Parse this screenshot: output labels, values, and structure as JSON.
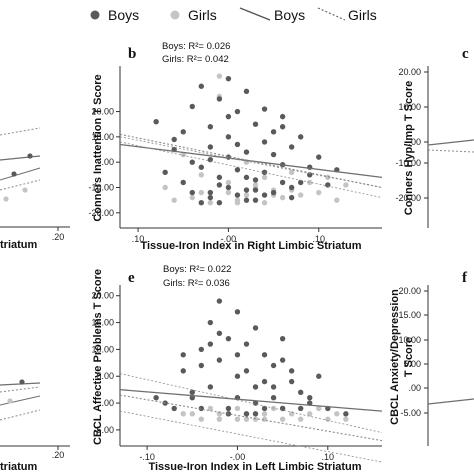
{
  "legend": {
    "boys_points": "Boys",
    "girls_points": "Girls",
    "boys_line": "Boys",
    "girls_line": "Girls"
  },
  "colors": {
    "boys_point": "#5a5a5a",
    "girls_point": "#c4c4c4",
    "boys_line": "#6e6e6e",
    "girls_line": "#8a8a8a",
    "axis": "#333333",
    "background": "#ffffff"
  },
  "chart_data": [
    {
      "panel": "b",
      "type": "scatter",
      "ylabel": "Conners Inattention T Score",
      "xlabel": "Tissue-Iron Index in Right Limbic Striatum",
      "xticks": [
        ".10",
        "-.00",
        ".10"
      ],
      "yticks": [
        "20.00",
        "10.00",
        ".00",
        "-10.00",
        "-20.00"
      ],
      "xlim": [
        -0.12,
        0.17
      ],
      "ylim": [
        -26,
        38
      ],
      "stats": [
        "Boys: R²= 0.026",
        "Girls: R²= 0.042"
      ],
      "fit_lines": {
        "boys": {
          "x": [
            -0.12,
            0.17
          ],
          "y": [
            7,
            -6
          ]
        },
        "girls": {
          "x": [
            -0.12,
            0.17
          ],
          "y": [
            11,
            -10
          ]
        }
      },
      "boys": {
        "x": [
          -0.08,
          -0.06,
          -0.05,
          -0.04,
          -0.04,
          -0.03,
          -0.03,
          -0.02,
          -0.02,
          -0.02,
          -0.01,
          -0.01,
          -0.01,
          0.0,
          0.0,
          0.0,
          0.0,
          0.01,
          0.01,
          0.01,
          0.02,
          0.02,
          0.02,
          0.03,
          0.03,
          0.03,
          0.04,
          0.04,
          0.04,
          0.05,
          0.05,
          0.06,
          0.06,
          0.07,
          0.07,
          0.08,
          0.09,
          0.1,
          0.11,
          0.12,
          -0.07,
          -0.05,
          -0.03,
          -0.01,
          0.01,
          0.03,
          0.05,
          0.07,
          0.09,
          -0.04,
          -0.02,
          0.0,
          0.02,
          0.04,
          0.06,
          0.08,
          -0.06,
          -0.02,
          0.02,
          0.06
        ],
        "y": [
          16,
          5,
          -8,
          22,
          -12,
          30,
          -2,
          14,
          -14,
          6,
          25,
          -6,
          -16,
          33,
          10,
          -10,
          2,
          20,
          -13,
          -3,
          28,
          4,
          -11,
          15,
          -7,
          -15,
          21,
          -4,
          8,
          12,
          -12,
          18,
          -8,
          6,
          -14,
          10,
          -5,
          2,
          -9,
          -3,
          -4,
          12,
          -16,
          -9,
          7,
          -11,
          3,
          -10,
          -2,
          0,
          -12,
          18,
          -6,
          -13,
          -1,
          -8,
          9,
          1,
          -15,
          14
        ]
      },
      "girls": {
        "x": [
          -0.07,
          -0.05,
          -0.04,
          -0.03,
          -0.02,
          -0.01,
          0.0,
          0.0,
          0.01,
          0.02,
          0.02,
          0.03,
          0.04,
          0.04,
          0.05,
          0.06,
          0.07,
          0.08,
          0.09,
          0.1,
          0.11,
          0.13,
          -0.06,
          -0.03,
          -0.01,
          0.01,
          0.03,
          0.05,
          0.07,
          0.12
        ],
        "y": [
          -10,
          3,
          -14,
          -5,
          -16,
          34,
          -12,
          -8,
          -15,
          0,
          -13,
          -9,
          -16,
          -6,
          -11,
          -14,
          -4,
          -13,
          -8,
          -12,
          -6,
          -9,
          -15,
          -12,
          26,
          -16,
          -10,
          -13,
          -11,
          -15
        ]
      }
    },
    {
      "panel": "e",
      "type": "scatter",
      "ylabel": "CBCL Affective Problems T Score",
      "xlabel": "Tissue-Iron Index in Left Limbic Striatum",
      "xticks": [
        "-.10",
        "-.00",
        ".10"
      ],
      "yticks": [
        "20.00",
        "15.00",
        "10.00",
        "5.00",
        ".00",
        "-5.00"
      ],
      "xlim": [
        -0.13,
        0.16
      ],
      "ylim": [
        -8,
        22
      ],
      "stats": [
        "Boys: R²= 0.022",
        "Girls: R²= 0.036"
      ],
      "fit_lines": {
        "boys": {
          "x": [
            -0.13,
            0.16
          ],
          "y": [
            2.5,
            -1.5
          ]
        },
        "girls": {
          "x": [
            -0.13,
            0.16
          ],
          "y": [
            1.5,
            -7
          ]
        }
      },
      "boys": {
        "x": [
          -0.09,
          -0.07,
          -0.06,
          -0.05,
          -0.04,
          -0.04,
          -0.03,
          -0.03,
          -0.02,
          -0.02,
          -0.01,
          -0.01,
          0.0,
          0.0,
          0.0,
          0.01,
          0.01,
          0.02,
          0.02,
          0.03,
          0.03,
          0.04,
          0.04,
          0.05,
          0.05,
          0.06,
          0.07,
          0.08,
          0.09,
          0.1,
          0.12,
          -0.06,
          -0.03,
          -0.01,
          0.01,
          0.03,
          0.05,
          0.07,
          -0.05,
          -0.02,
          0.0,
          0.02,
          0.04,
          0.06,
          -0.08,
          -0.04,
          0.02,
          0.08
        ],
        "y": [
          1,
          -1,
          6,
          2,
          10,
          -1,
          15,
          3,
          19,
          8,
          12,
          -1,
          17,
          5,
          1,
          11,
          -2,
          14,
          3,
          9,
          -1,
          7,
          1,
          12,
          -1,
          4,
          2,
          0,
          5,
          -1,
          -2,
          9,
          11,
          -2,
          6,
          4,
          8,
          -1,
          1,
          13,
          9,
          0,
          3,
          6,
          0,
          7,
          -2,
          1
        ]
      },
      "girls": {
        "x": [
          -0.06,
          -0.04,
          -0.03,
          -0.02,
          -0.01,
          0.0,
          0.0,
          0.01,
          0.02,
          0.03,
          0.04,
          0.05,
          0.06,
          0.07,
          0.08,
          0.09,
          0.1,
          0.11,
          0.12,
          -0.05,
          -0.02,
          0.01,
          0.03,
          0.05
        ],
        "y": [
          -2,
          -3,
          -1,
          -3,
          -2,
          -3,
          -1,
          -2,
          -3,
          -2,
          -1,
          -3,
          -2,
          -3,
          -2,
          -1,
          -3,
          -2,
          -3,
          -2,
          -2,
          -3,
          -3,
          -1
        ]
      }
    }
  ]
}
